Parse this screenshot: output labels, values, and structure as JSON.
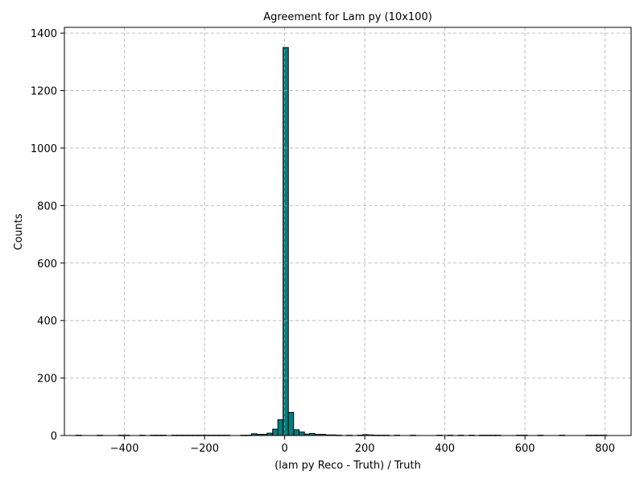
{
  "chart_data": {
    "type": "bar",
    "title": "Agreement for Lam py (10x100)",
    "xlabel": "(lam py Reco - Truth) / Truth",
    "ylabel": "Counts",
    "xlim": [
      -550,
      865
    ],
    "ylim": [
      0,
      1420
    ],
    "xticks": [
      -400,
      -200,
      0,
      200,
      400,
      600,
      800
    ],
    "xtick_labels": [
      "−400",
      "−200",
      "0",
      "200",
      "400",
      "600",
      "800"
    ],
    "yticks": [
      0,
      200,
      400,
      600,
      800,
      1000,
      1200,
      1400
    ],
    "ytick_labels": [
      "0",
      "200",
      "400",
      "600",
      "800",
      "1000",
      "1200",
      "1400"
    ],
    "grid": true,
    "bin_width": 13.25,
    "bar_color": "#008080",
    "edge_color": "#000000",
    "bins": [
      {
        "x": -521,
        "count": 1
      },
      {
        "x": -468,
        "count": 1
      },
      {
        "x": -415,
        "count": 1
      },
      {
        "x": -401,
        "count": 1
      },
      {
        "x": -362,
        "count": 1
      },
      {
        "x": -335,
        "count": 1
      },
      {
        "x": -322,
        "count": 1
      },
      {
        "x": -309,
        "count": 1
      },
      {
        "x": -282,
        "count": 1
      },
      {
        "x": -269,
        "count": 1
      },
      {
        "x": -256,
        "count": 1
      },
      {
        "x": -242,
        "count": 1
      },
      {
        "x": -229,
        "count": 1
      },
      {
        "x": -216,
        "count": 1
      },
      {
        "x": -203,
        "count": 1
      },
      {
        "x": -189,
        "count": 1
      },
      {
        "x": -176,
        "count": 1
      },
      {
        "x": -163,
        "count": 1
      },
      {
        "x": -150,
        "count": 1
      },
      {
        "x": -110,
        "count": 1
      },
      {
        "x": -97,
        "count": 1
      },
      {
        "x": -83,
        "count": 6
      },
      {
        "x": -70,
        "count": 4
      },
      {
        "x": -57,
        "count": 4
      },
      {
        "x": -44,
        "count": 8
      },
      {
        "x": -30,
        "count": 22
      },
      {
        "x": -17,
        "count": 55
      },
      {
        "x": -4,
        "count": 1350
      },
      {
        "x": 9,
        "count": 80
      },
      {
        "x": 23,
        "count": 20
      },
      {
        "x": 36,
        "count": 12
      },
      {
        "x": 49,
        "count": 5
      },
      {
        "x": 62,
        "count": 7
      },
      {
        "x": 76,
        "count": 4
      },
      {
        "x": 89,
        "count": 4
      },
      {
        "x": 102,
        "count": 2
      },
      {
        "x": 115,
        "count": 2
      },
      {
        "x": 129,
        "count": 1
      },
      {
        "x": 155,
        "count": 1
      },
      {
        "x": 182,
        "count": 1
      },
      {
        "x": 195,
        "count": 3
      },
      {
        "x": 208,
        "count": 2
      },
      {
        "x": 221,
        "count": 1
      },
      {
        "x": 235,
        "count": 1
      },
      {
        "x": 248,
        "count": 1
      },
      {
        "x": 274,
        "count": 1
      },
      {
        "x": 314,
        "count": 1
      },
      {
        "x": 380,
        "count": 1
      },
      {
        "x": 407,
        "count": 1
      },
      {
        "x": 433,
        "count": 1
      },
      {
        "x": 460,
        "count": 1
      },
      {
        "x": 486,
        "count": 1
      },
      {
        "x": 500,
        "count": 1
      },
      {
        "x": 513,
        "count": 1
      },
      {
        "x": 526,
        "count": 1
      },
      {
        "x": 579,
        "count": 1
      },
      {
        "x": 593,
        "count": 1
      },
      {
        "x": 632,
        "count": 1
      },
      {
        "x": 686,
        "count": 1
      },
      {
        "x": 752,
        "count": 1
      },
      {
        "x": 765,
        "count": 1
      },
      {
        "x": 778,
        "count": 1
      },
      {
        "x": 791,
        "count": 1
      }
    ]
  }
}
